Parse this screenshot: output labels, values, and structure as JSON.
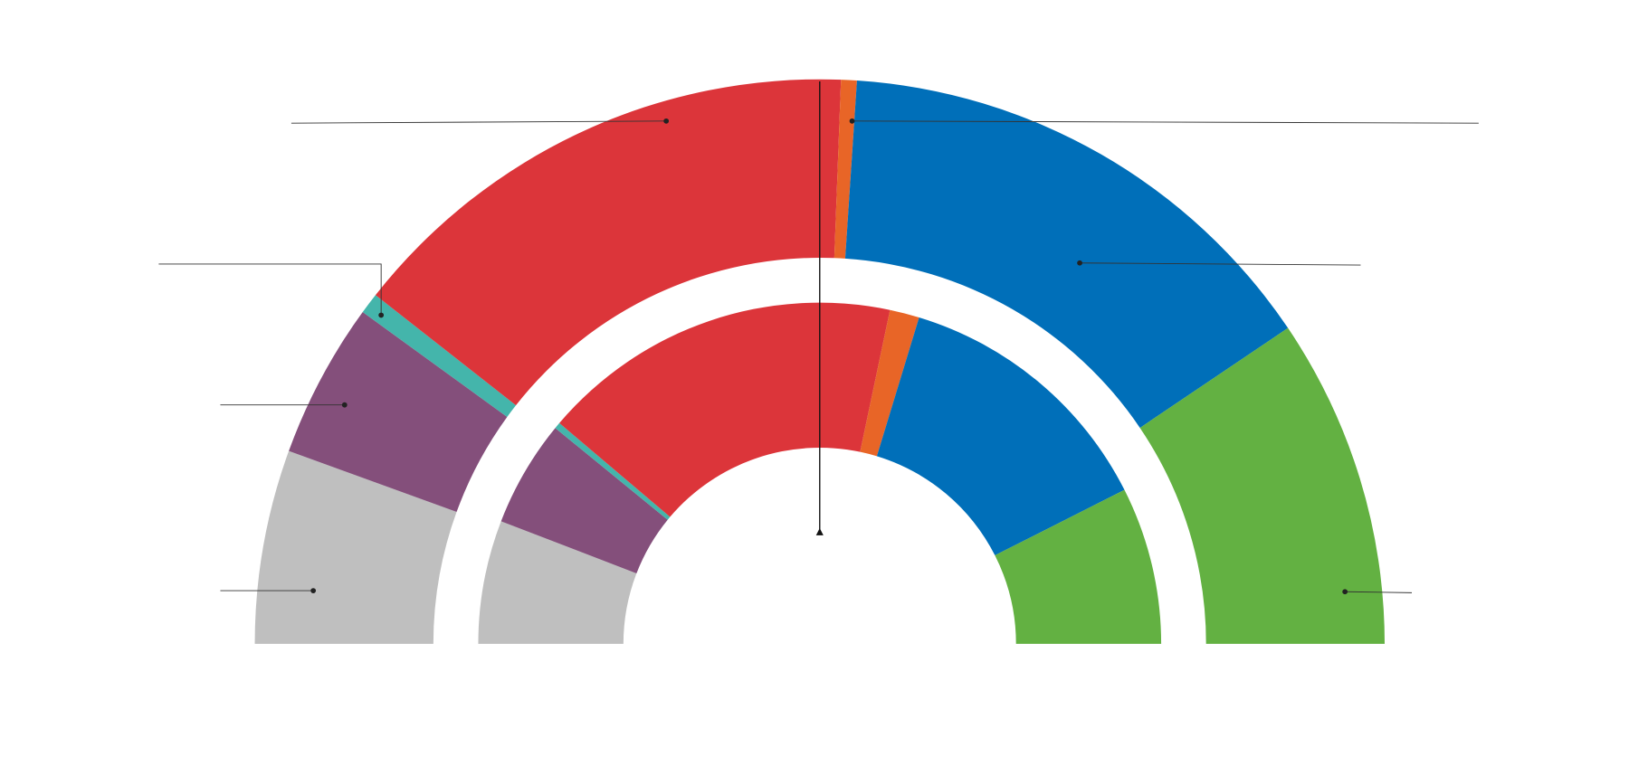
{
  "chart_data": [
    {
      "type": "pie",
      "half": true,
      "values": [
        11.1,
        8.9,
        1.2,
        30.0,
        0.9,
        29.0,
        18.9
      ],
      "colors": [
        "#bfbfbf",
        "#844f7b",
        "#44b5ab",
        "#dc353a",
        "#e86527",
        "#006fb9",
        "#63b142"
      ]
    },
    {
      "type": "pie",
      "half": true,
      "values": [
        11.7,
        10.1,
        0.6,
        34.2,
        2.8,
        25.7,
        14.9
      ],
      "colors": [
        "#bfbfbf",
        "#844f7b",
        "#44b5ab",
        "#dc353a",
        "#e86527",
        "#006fb9",
        "#63b142"
      ]
    }
  ]
}
